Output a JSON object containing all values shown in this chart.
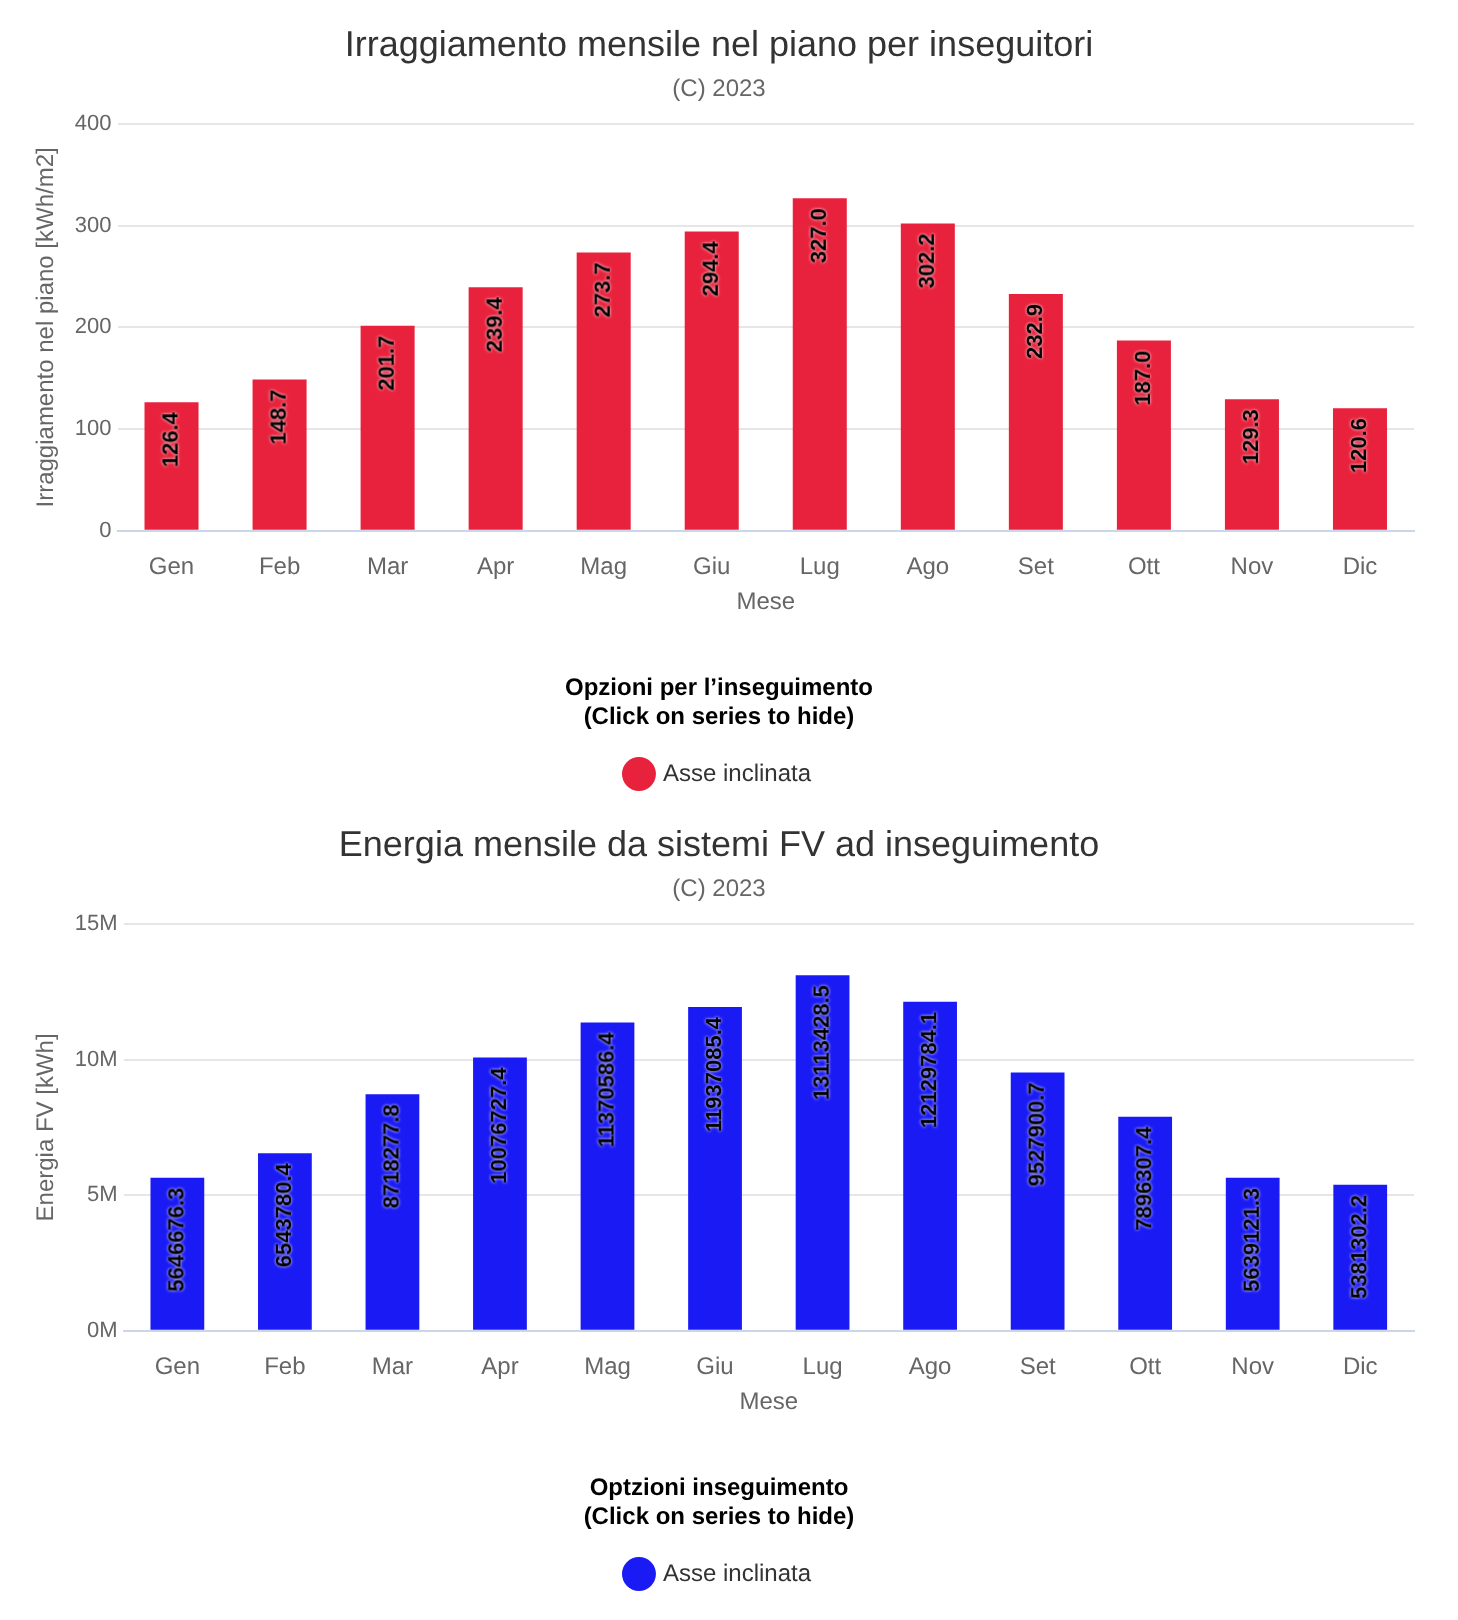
{
  "chart_data": [
    {
      "type": "bar",
      "title": "Irraggiamento mensile nel piano per inseguitori",
      "subtitle": "(C) 2023",
      "xlabel": "Mese",
      "ylabel": "Irraggiamento nel piano [kWh/m2]",
      "legend_title": "Opzioni per l’inseguimento\n(Click on series to hide)",
      "legend": "bottom",
      "grid": "y",
      "categories": [
        "Gen",
        "Feb",
        "Mar",
        "Apr",
        "Mag",
        "Giu",
        "Lug",
        "Ago",
        "Set",
        "Ott",
        "Nov",
        "Dic"
      ],
      "series": [
        {
          "name": "Asse inclinata",
          "color": "#e8223c",
          "values": [
            126.4,
            148.7,
            201.7,
            239.4,
            273.7,
            294.4,
            327.0,
            302.2,
            232.9,
            187.0,
            129.3,
            120.6
          ],
          "value_labels": [
            "126.4",
            "148.7",
            "201.7",
            "239.4",
            "273.7",
            "294.4",
            "327.0",
            "302.2",
            "232.9",
            "187.0",
            "129.3",
            "120.6"
          ]
        }
      ],
      "ylim": [
        0,
        400
      ],
      "yticks": [
        0,
        100,
        200,
        300,
        400
      ]
    },
    {
      "type": "bar",
      "title": "Energia mensile da sistemi FV ad inseguimento",
      "subtitle": "(C) 2023",
      "xlabel": "Mese",
      "ylabel": "Energia FV [kWh]",
      "legend_title": "Optzioni inseguimento\n(Click on series to hide)",
      "legend": "bottom",
      "grid": "y",
      "categories": [
        "Gen",
        "Feb",
        "Mar",
        "Apr",
        "Mag",
        "Giu",
        "Lug",
        "Ago",
        "Set",
        "Ott",
        "Nov",
        "Dic"
      ],
      "series": [
        {
          "name": "Asse inclinata",
          "color": "#1a1af5",
          "values": [
            5646676.3,
            6543780.4,
            8718277.8,
            10076727.4,
            11370586.4,
            11937085.4,
            13113428.5,
            12129784.1,
            9527900.7,
            7896307.4,
            5639121.3,
            5381302.2
          ],
          "value_labels": [
            "5646676.3",
            "6543780.4",
            "8718277.8",
            "10076727.4",
            "11370586.4",
            "11937085.4",
            "13113428.5",
            "12129784.1",
            "9527900.7",
            "7896307.4",
            "5639121.3",
            "5381302.2"
          ]
        }
      ],
      "ylim": [
        0,
        15000000
      ],
      "yticks": [
        {
          "value": 0,
          "label": "0M"
        },
        {
          "value": 5000000,
          "label": "5M"
        },
        {
          "value": 10000000,
          "label": "10M"
        },
        {
          "value": 15000000,
          "label": "15M"
        }
      ]
    }
  ]
}
